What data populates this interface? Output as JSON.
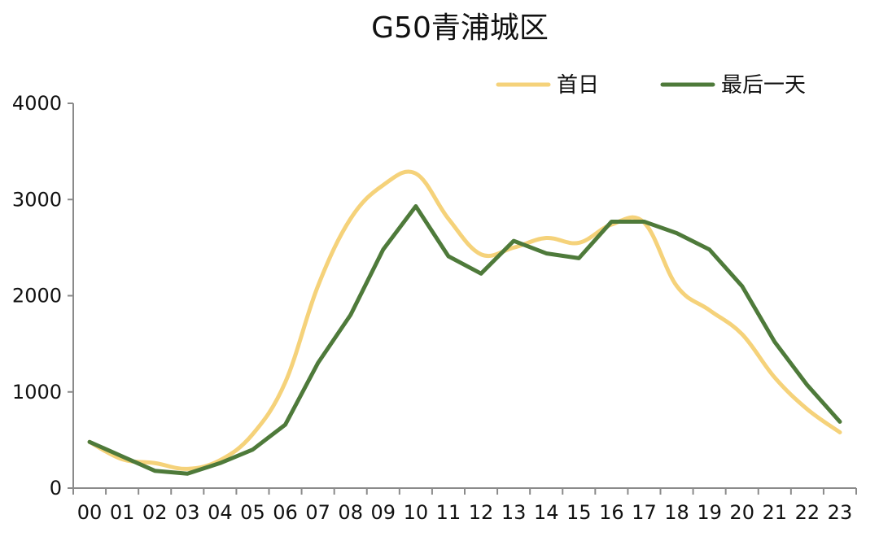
{
  "chart_data": {
    "type": "line",
    "title": "G50青浦城区",
    "xlabel": "",
    "ylabel": "",
    "x": [
      "00",
      "01",
      "02",
      "03",
      "04",
      "05",
      "06",
      "07",
      "08",
      "09",
      "10",
      "11",
      "12",
      "13",
      "14",
      "15",
      "16",
      "17",
      "18",
      "19",
      "20",
      "21",
      "22",
      "23"
    ],
    "ylim": [
      0,
      4000
    ],
    "yticks": [
      "0",
      "1000",
      "2000",
      "3000",
      "4000"
    ],
    "grid": false,
    "legend_position": "top-right",
    "series": [
      {
        "name": "首日",
        "color": "#F5D27A",
        "smooth": true,
        "values": [
          480,
          300,
          260,
          200,
          290,
          560,
          1100,
          2100,
          2800,
          3150,
          3270,
          2800,
          2430,
          2500,
          2600,
          2550,
          2740,
          2760,
          2100,
          1850,
          1600,
          1150,
          820,
          580
        ]
      },
      {
        "name": "最后一天",
        "color": "#4E7A3A",
        "smooth": false,
        "values": [
          480,
          330,
          180,
          150,
          260,
          400,
          660,
          1300,
          1800,
          2480,
          2930,
          2410,
          2230,
          2570,
          2440,
          2390,
          2770,
          2770,
          2650,
          2480,
          2100,
          1520,
          1070,
          690
        ]
      }
    ]
  }
}
